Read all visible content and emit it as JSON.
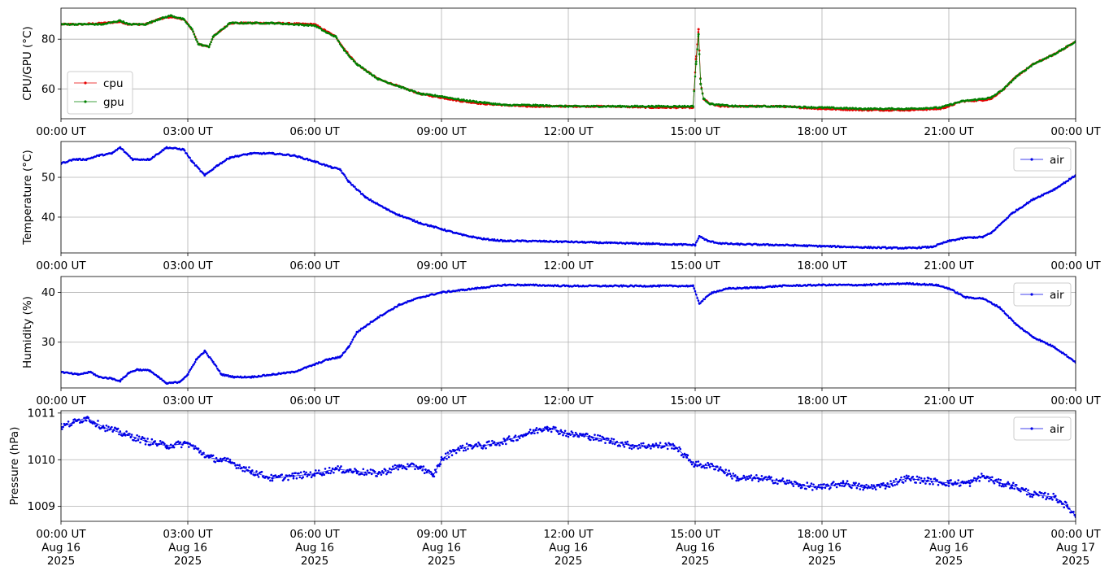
{
  "chart_data": [
    {
      "type": "line",
      "ylabel": "CPU/GPU (°C)",
      "ylim": [
        48,
        92.5
      ],
      "yticks": [
        60,
        80
      ],
      "xticklabels": [
        "00:00 UT",
        "03:00 UT",
        "06:00 UT",
        "09:00 UT",
        "12:00 UT",
        "15:00 UT",
        "18:00 UT",
        "21:00 UT",
        "00:00 UT"
      ],
      "grid": true,
      "legend": "lower-left",
      "series": [
        {
          "name": "cpu",
          "color": "#e60000",
          "x": [
            0,
            0.5,
            1.0,
            1.4,
            1.6,
            2.0,
            2.3,
            2.6,
            2.9,
            3.1,
            3.25,
            3.5,
            3.6,
            4.0,
            5.0,
            6.0,
            6.3,
            6.5,
            6.7,
            7.0,
            7.5,
            8.0,
            8.5,
            9.0,
            9.5,
            10.0,
            10.5,
            11.0,
            12.0,
            13.0,
            14.0,
            14.95,
            15.02,
            15.08,
            15.13,
            15.2,
            15.35,
            15.6,
            16.0,
            17.0,
            18.0,
            19.0,
            20.0,
            20.8,
            21.0,
            21.3,
            21.8,
            22.0,
            22.3,
            22.6,
            23.0,
            23.5,
            24.0
          ],
          "y": [
            86,
            86,
            86.5,
            87,
            86,
            86,
            88,
            89,
            88,
            84,
            78,
            77,
            81,
            86.5,
            86.5,
            86,
            83,
            81,
            76,
            70,
            64,
            61,
            58,
            56.5,
            55,
            54,
            53.5,
            53,
            53,
            53,
            52.5,
            52.5,
            72,
            84,
            62,
            56,
            54,
            53,
            53,
            53,
            52,
            51.5,
            51.5,
            52,
            53,
            55,
            55.5,
            56,
            60,
            65,
            70,
            74,
            79
          ]
        },
        {
          "name": "gpu",
          "color": "#008000",
          "x": [
            0,
            0.5,
            1.0,
            1.4,
            1.6,
            2.0,
            2.3,
            2.6,
            2.9,
            3.1,
            3.25,
            3.5,
            3.6,
            4.0,
            5.0,
            6.0,
            6.3,
            6.5,
            6.7,
            7.0,
            7.5,
            8.0,
            8.5,
            9.0,
            9.5,
            10.0,
            10.5,
            11.0,
            12.0,
            13.0,
            14.0,
            14.95,
            15.02,
            15.08,
            15.13,
            15.2,
            15.35,
            15.6,
            16.0,
            17.0,
            18.0,
            19.0,
            20.0,
            20.8,
            21.0,
            21.3,
            21.8,
            22.0,
            22.3,
            22.6,
            23.0,
            23.5,
            24.0
          ],
          "y": [
            86,
            86,
            86,
            87.5,
            86,
            86,
            88,
            89.5,
            88,
            84,
            78,
            77,
            81,
            86.5,
            86.5,
            85.5,
            82.5,
            81,
            75.5,
            70,
            64,
            61,
            58,
            57,
            55.5,
            54.5,
            53.5,
            53.5,
            53,
            53,
            53,
            53,
            70,
            82,
            62,
            56,
            54,
            53.5,
            53,
            53,
            52.5,
            52,
            52,
            52.5,
            53.5,
            55,
            56,
            56.5,
            60,
            65,
            70,
            74,
            79
          ]
        }
      ]
    },
    {
      "type": "line",
      "ylabel": "Temperature (°C)",
      "ylim": [
        31,
        59
      ],
      "yticks": [
        40,
        50
      ],
      "xticklabels": [
        "00:00 UT",
        "03:00 UT",
        "06:00 UT",
        "09:00 UT",
        "12:00 UT",
        "15:00 UT",
        "18:00 UT",
        "21:00 UT",
        "00:00 UT"
      ],
      "grid": true,
      "legend": "upper-right",
      "series": [
        {
          "name": "air",
          "color": "#0000e6",
          "x": [
            0,
            0.3,
            0.6,
            0.9,
            1.2,
            1.4,
            1.7,
            2.1,
            2.5,
            2.9,
            3.1,
            3.4,
            3.7,
            4.0,
            4.5,
            5.0,
            5.5,
            6.0,
            6.4,
            6.6,
            6.8,
            7.2,
            7.7,
            8.0,
            8.5,
            9.0,
            9.5,
            10.0,
            10.5,
            11.0,
            12.0,
            13.0,
            14.0,
            15.0,
            15.1,
            15.3,
            15.6,
            16.0,
            17.0,
            18.0,
            19.0,
            20.0,
            20.6,
            21.0,
            21.4,
            21.8,
            22.0,
            22.5,
            23.0,
            23.5,
            24.0
          ],
          "y": [
            53.5,
            54.5,
            54.5,
            55.5,
            56,
            57.5,
            54.5,
            54.5,
            57.5,
            57,
            54,
            50.5,
            53,
            55,
            56,
            56,
            55.5,
            54,
            52.5,
            52,
            49,
            45,
            42,
            40.5,
            38.5,
            37,
            35.5,
            34.5,
            34,
            34,
            33.8,
            33.5,
            33.3,
            33,
            35.2,
            34,
            33.4,
            33.2,
            33,
            32.7,
            32.4,
            32.2,
            32.5,
            34,
            34.8,
            35,
            36,
            41,
            44.5,
            47,
            50.5
          ]
        }
      ]
    },
    {
      "type": "line",
      "ylabel": "Humidity (%)",
      "ylim": [
        20.8,
        43.2
      ],
      "yticks": [
        30,
        40
      ],
      "xticklabels": [
        "00:00 UT",
        "03:00 UT",
        "06:00 UT",
        "09:00 UT",
        "12:00 UT",
        "15:00 UT",
        "18:00 UT",
        "21:00 UT",
        "00:00 UT"
      ],
      "grid": true,
      "legend": "upper-right",
      "series": [
        {
          "name": "air",
          "color": "#0000e6",
          "x": [
            0,
            0.4,
            0.7,
            0.9,
            1.2,
            1.4,
            1.6,
            1.8,
            2.1,
            2.3,
            2.5,
            2.8,
            3.0,
            3.2,
            3.4,
            3.6,
            3.8,
            4.1,
            4.5,
            5.0,
            5.5,
            6.0,
            6.3,
            6.6,
            6.8,
            7.0,
            7.5,
            8.0,
            8.5,
            9.0,
            9.5,
            10.0,
            10.5,
            11.0,
            12.0,
            13.0,
            14.0,
            14.95,
            15.1,
            15.4,
            15.8,
            16.5,
            17.0,
            18.0,
            19.0,
            20.0,
            20.7,
            21.0,
            21.4,
            21.8,
            22.2,
            22.6,
            23.0,
            23.5,
            24.0
          ],
          "y": [
            24,
            23.5,
            24,
            23,
            22.7,
            22.2,
            23.8,
            24.5,
            24.3,
            23,
            21.7,
            22,
            23.5,
            26.5,
            28.2,
            26,
            23.5,
            23,
            23,
            23.5,
            24,
            25.5,
            26.5,
            27,
            29,
            32,
            35,
            37.5,
            39,
            40,
            40.5,
            41,
            41.5,
            41.5,
            41.3,
            41.3,
            41.3,
            41.3,
            37.8,
            40,
            40.8,
            41,
            41.3,
            41.5,
            41.5,
            41.8,
            41.5,
            40.8,
            39,
            38.8,
            37,
            33.5,
            31,
            29,
            26
          ]
        }
      ]
    },
    {
      "type": "line",
      "ylabel": "Pressure (hPa)",
      "ylim": [
        1008.68,
        1011.05
      ],
      "yticks": [
        1009,
        1010,
        1011
      ],
      "xticklabels": [
        "00:00 UT\nAug 16\n2025",
        "03:00 UT\nAug 16\n2025",
        "06:00 UT\nAug 16\n2025",
        "09:00 UT\nAug 16\n2025",
        "12:00 UT\nAug 16\n2025",
        "15:00 UT\nAug 16\n2025",
        "18:00 UT\nAug 16\n2025",
        "21:00 UT\nAug 16\n2025",
        "00:00 UT\nAug 17\n2025"
      ],
      "grid": true,
      "legend": "upper-right",
      "series": [
        {
          "name": "air",
          "color": "#0000e6",
          "x": [
            0,
            0.3,
            0.6,
            1.0,
            1.5,
            2.0,
            2.5,
            3.0,
            3.5,
            4.0,
            4.5,
            5.0,
            5.5,
            6.0,
            6.5,
            7.0,
            7.5,
            8.0,
            8.5,
            8.8,
            9.0,
            9.3,
            9.7,
            10.0,
            10.5,
            11.0,
            11.5,
            12.0,
            12.5,
            13.0,
            13.5,
            14.0,
            14.5,
            14.8,
            15.0,
            15.5,
            16.0,
            16.5,
            17.0,
            17.5,
            18.0,
            18.5,
            19.0,
            19.5,
            20.0,
            20.5,
            21.0,
            21.5,
            21.8,
            22.2,
            22.5,
            23.0,
            23.5,
            23.8,
            24.0
          ],
          "y": [
            1010.7,
            1010.8,
            1010.9,
            1010.7,
            1010.55,
            1010.4,
            1010.3,
            1010.35,
            1010.05,
            1009.95,
            1009.75,
            1009.6,
            1009.65,
            1009.7,
            1009.8,
            1009.75,
            1009.7,
            1009.85,
            1009.85,
            1009.65,
            1010.0,
            1010.2,
            1010.3,
            1010.3,
            1010.4,
            1010.55,
            1010.7,
            1010.55,
            1010.5,
            1010.4,
            1010.3,
            1010.3,
            1010.3,
            1010.05,
            1009.9,
            1009.85,
            1009.6,
            1009.6,
            1009.55,
            1009.45,
            1009.4,
            1009.5,
            1009.4,
            1009.45,
            1009.6,
            1009.55,
            1009.5,
            1009.5,
            1009.65,
            1009.5,
            1009.45,
            1009.25,
            1009.2,
            1009.0,
            1008.8
          ]
        }
      ]
    }
  ]
}
